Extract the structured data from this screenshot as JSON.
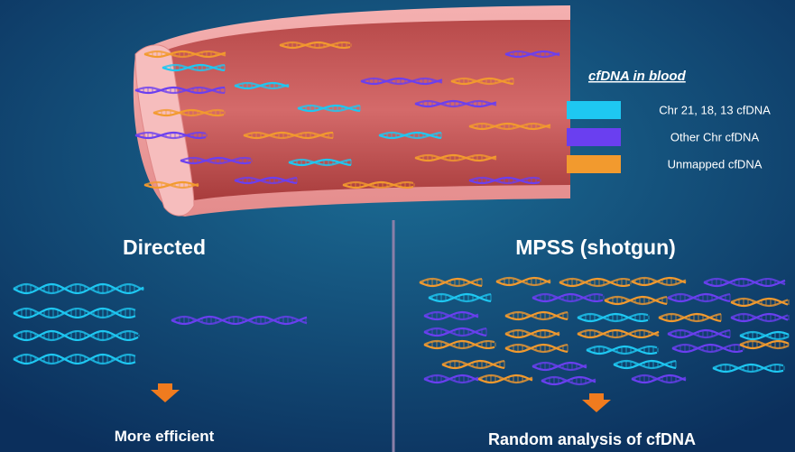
{
  "legend": {
    "title": "cfDNA in blood",
    "items": [
      {
        "label": "Chr 21, 18, 13 cfDNA",
        "color": "#1ec8f2"
      },
      {
        "label": "Other Chr cfDNA",
        "color": "#6a3ff0"
      },
      {
        "label": "Unmapped cfDNA",
        "color": "#f29a2e"
      }
    ]
  },
  "panels": [
    {
      "title": "Directed",
      "result": "More efficient"
    },
    {
      "title": "MPSS (shotgun)",
      "result": "Random analysis of cfDNA"
    }
  ]
}
